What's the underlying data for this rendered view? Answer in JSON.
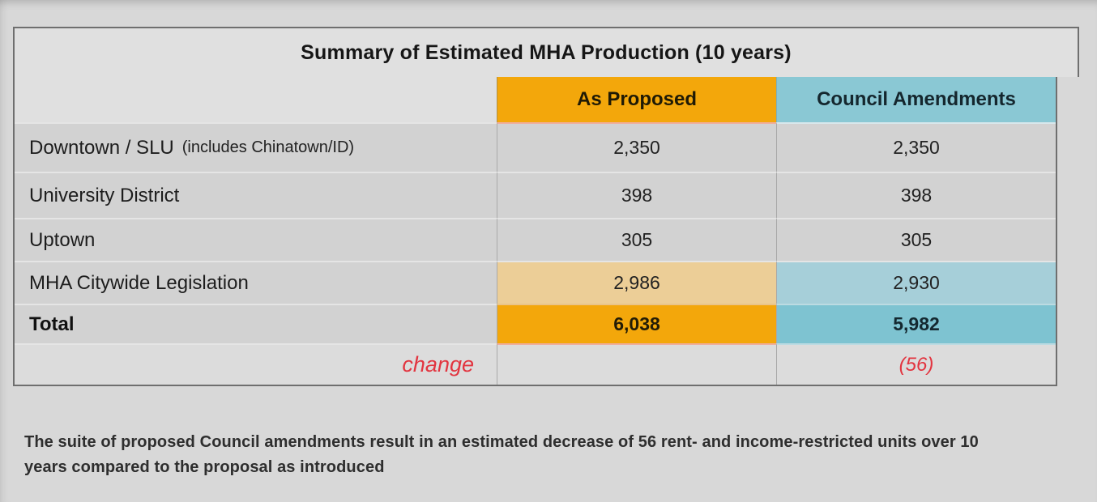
{
  "title": "Summary of Estimated MHA Production (10 years)",
  "table": {
    "columns": [
      "As Proposed",
      "Council Amendments"
    ],
    "rows": [
      {
        "label": "Downtown / SLU",
        "label_note": "(includes Chinatown/ID)",
        "as_proposed": "2,350",
        "council_amendments": "2,350"
      },
      {
        "label": "University District",
        "as_proposed": "398",
        "council_amendments": "398"
      },
      {
        "label": "Uptown",
        "as_proposed": "305",
        "council_amendments": "305"
      },
      {
        "label": "MHA Citywide Legislation",
        "as_proposed": "2,986",
        "council_amendments": "2,930"
      },
      {
        "label": "Total",
        "as_proposed": "6,038",
        "council_amendments": "5,982"
      },
      {
        "label": "change",
        "as_proposed": "",
        "council_amendments": "(56)"
      }
    ]
  },
  "note": "The suite of proposed Council amendments result in an estimated decrease of 56 rent- and income-restricted units over 10 years compared to the proposal as introduced",
  "colors": {
    "header_orange": "#f3a70b",
    "header_teal": "#8ac8d4",
    "cell_tan": "#ecce97",
    "cell_light_teal": "#a6cfd9",
    "total_teal": "#7ec3d1",
    "change_red": "#e23540",
    "row_gray": "#d2d2d2",
    "band_gray": "#e0e0e0",
    "frame_border": "#6f6f6f",
    "background": "#d8d8d8"
  }
}
